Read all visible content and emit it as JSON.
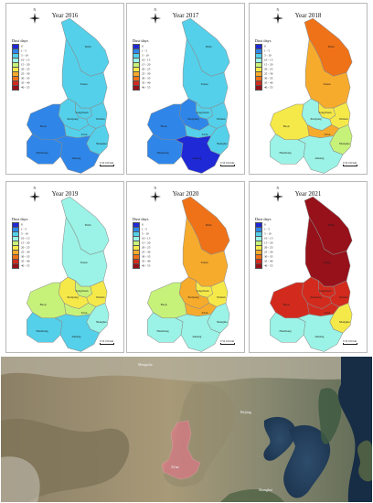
{
  "colors": {
    "c1": "#1f29d6",
    "c2": "#2f86e8",
    "c3": "#54d0ea",
    "c4": "#9af3e6",
    "c5": "#c7f27a",
    "c6": "#f5e94a",
    "c7": "#f7ab2c",
    "c8": "#ef7219",
    "c9": "#d22b1e",
    "c10": "#96111a"
  },
  "legend": {
    "title": "Dust days",
    "items": [
      {
        "label": "0",
        "color": "c1"
      },
      {
        "label": "1 - 5",
        "color": "c2"
      },
      {
        "label": "5 - 10",
        "color": "c3"
      },
      {
        "label": "10 - 15",
        "color": "c4"
      },
      {
        "label": "15 - 20",
        "color": "c5"
      },
      {
        "label": "20 - 25",
        "color": "c6"
      },
      {
        "label": "25 - 30",
        "color": "c7"
      },
      {
        "label": "30 - 35",
        "color": "c8"
      },
      {
        "label": "35 - 40",
        "color": "c9"
      },
      {
        "label": "40 - 55",
        "color": "c10"
      }
    ]
  },
  "north": "N",
  "scale": "0  50  100 km",
  "cities": [
    "Yulin",
    "Yanan",
    "Tongchuan",
    "Weinan",
    "Xi'an",
    "Baoji",
    "Xianyang",
    "Shangluo",
    "Hanzhong",
    "Ankang"
  ],
  "panels": [
    {
      "title": "Year 2016",
      "fills": {
        "Yulin": "c3",
        "Yanan": "c3",
        "Tongchuan": "c3",
        "Weinan": "c3",
        "Xianyang": "c3",
        "Xi'an": "c3",
        "Baoji": "c2",
        "Shangluo": "c3",
        "Hanzhong": "c2",
        "Ankang": "c2"
      }
    },
    {
      "title": "Year 2017",
      "fills": {
        "Yulin": "c3",
        "Yanan": "c3",
        "Tongchuan": "c3",
        "Weinan": "c3",
        "Xianyang": "c2",
        "Xi'an": "c3",
        "Baoji": "c2",
        "Shangluo": "c3",
        "Hanzhong": "c2",
        "Ankang": "c1"
      }
    },
    {
      "title": "Year 2018",
      "fills": {
        "Yulin": "c8",
        "Yanan": "c7",
        "Tongchuan": "c6",
        "Weinan": "c6",
        "Xianyang": "c4",
        "Xi'an": "c7",
        "Baoji": "c6",
        "Shangluo": "c5",
        "Hanzhong": "c4",
        "Ankang": "c4"
      }
    },
    {
      "title": "Year 2019",
      "fills": {
        "Yulin": "c4",
        "Yanan": "c4",
        "Tongchuan": "c5",
        "Weinan": "c6",
        "Xianyang": "c6",
        "Xi'an": "c5",
        "Baoji": "c5",
        "Shangluo": "c4",
        "Hanzhong": "c3",
        "Ankang": "c3"
      }
    },
    {
      "title": "Year 2020",
      "fills": {
        "Yulin": "c8",
        "Yanan": "c7",
        "Tongchuan": "c6",
        "Weinan": "c6",
        "Xianyang": "c7",
        "Xi'an": "c7",
        "Baoji": "c5",
        "Shangluo": "c4",
        "Hanzhong": "c4",
        "Ankang": "c4"
      }
    },
    {
      "title": "Year 2021",
      "fills": {
        "Yulin": "c10",
        "Yanan": "c10",
        "Tongchuan": "c9",
        "Weinan": "c9",
        "Xianyang": "c9",
        "Xi'an": "c9",
        "Baoji": "c9",
        "Shangluo": "c6",
        "Hanzhong": "c4",
        "Ankang": "c4"
      }
    }
  ],
  "satellite": {
    "labels": [
      "Mongolia",
      "Beijing",
      "Xi'an",
      "Shanghai"
    ]
  }
}
